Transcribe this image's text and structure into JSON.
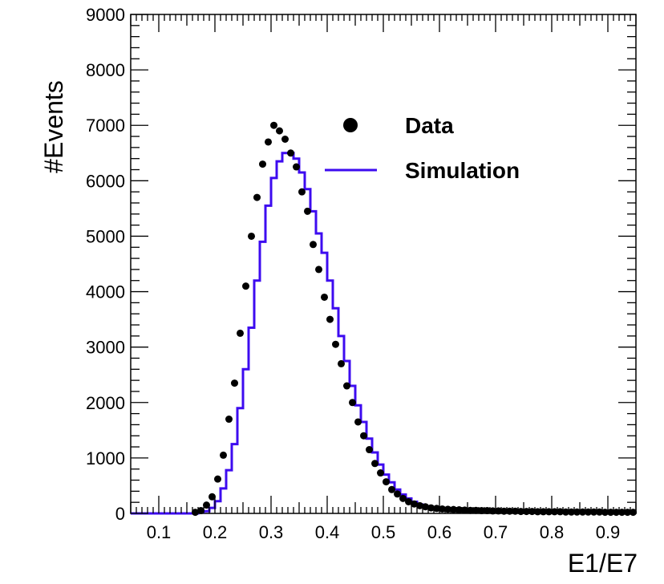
{
  "chart_data": {
    "type": "scatter",
    "xlabel": "E1/E7",
    "ylabel": "#Events",
    "xlim": [
      0.05,
      0.95
    ],
    "ylim": [
      0,
      9000
    ],
    "x_ticks": [
      "0.1",
      "0.2",
      "0.3",
      "0.4",
      "0.5",
      "0.6",
      "0.7",
      "0.8",
      "0.9"
    ],
    "y_ticks": [
      "0",
      "1000",
      "2000",
      "3000",
      "4000",
      "5000",
      "6000",
      "7000",
      "8000",
      "9000"
    ],
    "grid": false,
    "legend_position": "upper-right",
    "bin_width": 0.01,
    "series": [
      {
        "name": "Data",
        "style": "markers",
        "color": "#000000",
        "x": [
          0.165,
          0.175,
          0.185,
          0.195,
          0.205,
          0.215,
          0.225,
          0.235,
          0.245,
          0.255,
          0.265,
          0.275,
          0.285,
          0.295,
          0.305,
          0.315,
          0.325,
          0.335,
          0.345,
          0.355,
          0.365,
          0.375,
          0.385,
          0.395,
          0.405,
          0.415,
          0.425,
          0.435,
          0.445,
          0.455,
          0.465,
          0.475,
          0.485,
          0.495,
          0.505,
          0.515,
          0.525,
          0.535,
          0.545,
          0.555,
          0.565,
          0.575,
          0.585,
          0.595,
          0.605,
          0.615,
          0.625,
          0.635,
          0.645,
          0.655,
          0.665,
          0.675,
          0.685,
          0.695,
          0.705,
          0.715,
          0.725,
          0.735,
          0.745,
          0.755,
          0.765,
          0.775,
          0.785,
          0.795,
          0.805,
          0.815,
          0.825,
          0.835,
          0.845,
          0.855,
          0.865,
          0.875,
          0.885,
          0.895,
          0.905,
          0.915,
          0.925,
          0.935,
          0.945
        ],
        "y": [
          20,
          50,
          150,
          300,
          620,
          1050,
          1700,
          2350,
          3250,
          4100,
          5000,
          5700,
          6300,
          6700,
          7000,
          6900,
          6750,
          6500,
          6250,
          5800,
          5450,
          4850,
          4400,
          3900,
          3500,
          3050,
          2700,
          2300,
          2000,
          1650,
          1400,
          1150,
          900,
          730,
          570,
          430,
          350,
          270,
          210,
          170,
          140,
          120,
          100,
          90,
          80,
          75,
          70,
          65,
          60,
          55,
          55,
          50,
          50,
          45,
          45,
          40,
          40,
          40,
          35,
          35,
          35,
          30,
          30,
          30,
          30,
          30,
          25,
          25,
          25,
          25,
          25,
          25,
          25,
          20,
          20,
          20,
          20,
          20,
          20
        ]
      },
      {
        "name": "Simulation",
        "style": "step",
        "color": "#3d0bf0",
        "x": [
          0.05,
          0.06,
          0.07,
          0.08,
          0.09,
          0.1,
          0.11,
          0.12,
          0.13,
          0.14,
          0.15,
          0.16,
          0.17,
          0.18,
          0.19,
          0.2,
          0.21,
          0.22,
          0.23,
          0.24,
          0.25,
          0.26,
          0.27,
          0.28,
          0.29,
          0.3,
          0.31,
          0.32,
          0.33,
          0.34,
          0.35,
          0.36,
          0.37,
          0.38,
          0.39,
          0.4,
          0.41,
          0.42,
          0.43,
          0.44,
          0.45,
          0.46,
          0.47,
          0.48,
          0.49,
          0.5,
          0.51,
          0.52,
          0.53,
          0.54,
          0.55,
          0.56,
          0.57,
          0.58,
          0.59,
          0.6,
          0.61,
          0.62,
          0.63,
          0.64,
          0.65,
          0.66,
          0.67,
          0.68,
          0.69,
          0.7,
          0.71,
          0.72,
          0.73,
          0.74,
          0.75,
          0.76,
          0.77,
          0.78,
          0.79,
          0.8,
          0.81,
          0.82,
          0.83,
          0.84,
          0.85,
          0.86,
          0.87,
          0.88,
          0.89,
          0.9,
          0.91,
          0.92,
          0.93,
          0.94
        ],
        "y": [
          0,
          0,
          0,
          0,
          0,
          0,
          0,
          0,
          0,
          0,
          0,
          0,
          20,
          40,
          100,
          220,
          450,
          780,
          1250,
          1900,
          2600,
          3350,
          4200,
          4900,
          5550,
          6050,
          6350,
          6500,
          6500,
          6400,
          6150,
          5850,
          5450,
          5050,
          4700,
          4200,
          3700,
          3200,
          2750,
          2300,
          1950,
          1650,
          1350,
          1100,
          880,
          700,
          560,
          430,
          340,
          270,
          210,
          160,
          130,
          110,
          95,
          85,
          75,
          70,
          65,
          60,
          55,
          55,
          50,
          50,
          45,
          45,
          40,
          40,
          40,
          35,
          35,
          35,
          30,
          30,
          30,
          30,
          30,
          25,
          25,
          25,
          25,
          25,
          25,
          25,
          20,
          20,
          20,
          20,
          20,
          20
        ]
      }
    ]
  }
}
